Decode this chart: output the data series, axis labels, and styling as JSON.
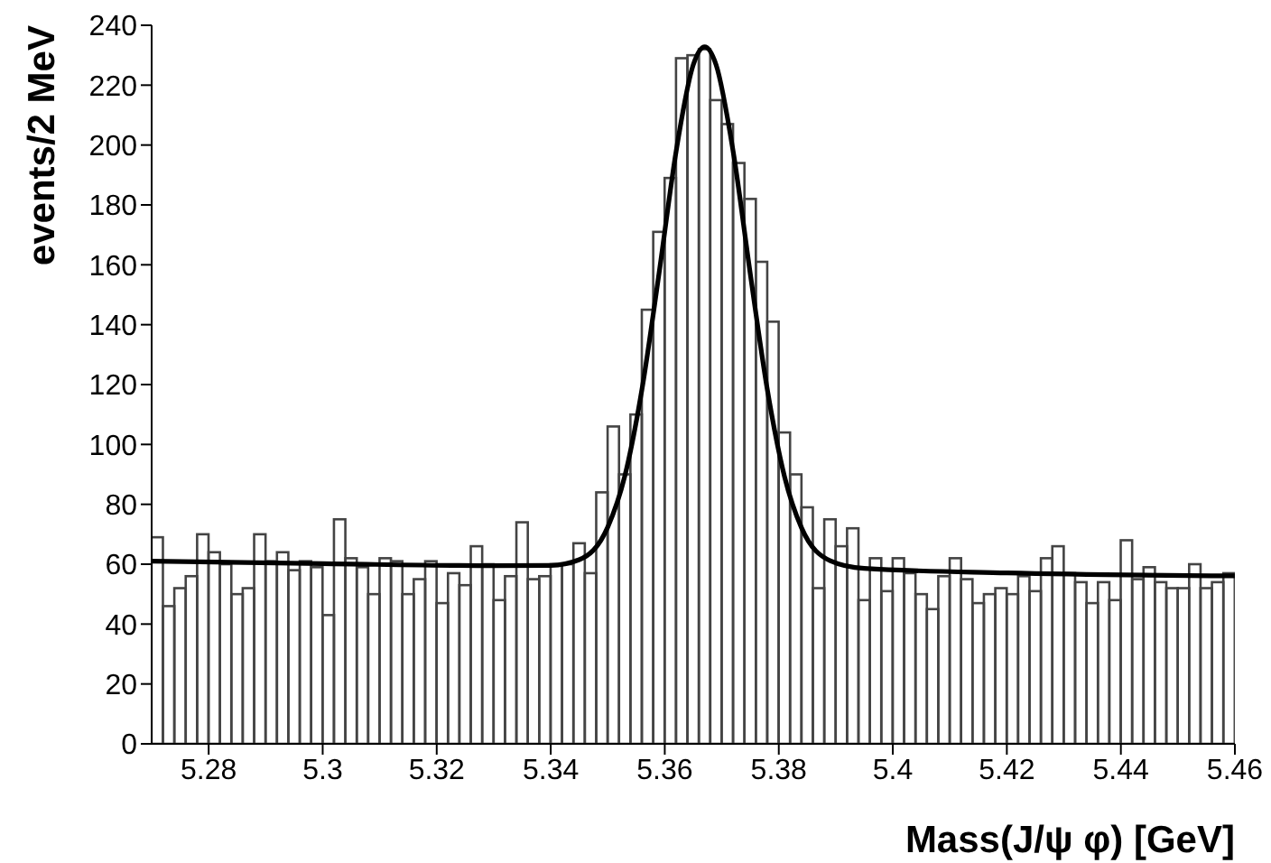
{
  "chart_data": {
    "type": "histogram",
    "xlabel": "Mass(J/ψ φ) [GeV]",
    "ylabel": "events/2 MeV",
    "xlim": [
      5.27,
      5.46
    ],
    "xticks": [
      5.28,
      5.3,
      5.32,
      5.34,
      5.36,
      5.38,
      5.4,
      5.42,
      5.44,
      5.46
    ],
    "ylim": [
      0,
      240
    ],
    "yticks": [
      0,
      20,
      40,
      60,
      80,
      100,
      120,
      140,
      160,
      180,
      200,
      220,
      240
    ],
    "grid": false,
    "legend": false,
    "series": [
      {
        "color": "#444444",
        "bins": [
          5.27,
          5.272,
          5.274,
          5.276,
          5.278,
          5.28,
          5.282,
          5.284,
          5.286,
          5.288,
          5.29,
          5.292,
          5.294,
          5.296,
          5.298,
          5.3,
          5.302,
          5.304,
          5.306,
          5.308,
          5.31,
          5.312,
          5.314,
          5.316,
          5.318,
          5.32,
          5.322,
          5.324,
          5.326,
          5.328,
          5.33,
          5.332,
          5.334,
          5.336,
          5.338,
          5.34,
          5.342,
          5.344,
          5.346,
          5.348,
          5.35,
          5.352,
          5.354,
          5.356,
          5.358,
          5.36,
          5.362,
          5.364,
          5.366,
          5.368,
          5.37,
          5.372,
          5.374,
          5.376,
          5.378,
          5.38,
          5.382,
          5.384,
          5.386,
          5.388,
          5.39,
          5.392,
          5.394,
          5.396,
          5.398,
          5.4,
          5.402,
          5.404,
          5.406,
          5.408,
          5.41,
          5.412,
          5.414,
          5.416,
          5.418,
          5.42,
          5.422,
          5.424,
          5.426,
          5.428,
          5.43,
          5.432,
          5.434,
          5.436,
          5.438,
          5.44,
          5.442,
          5.444,
          5.446,
          5.448,
          5.45,
          5.452,
          5.454,
          5.456,
          5.458,
          5.46
        ],
        "values": [
          69,
          46,
          52,
          56,
          70,
          64,
          60,
          50,
          52,
          70,
          61,
          64,
          58,
          61,
          59,
          43,
          75,
          62,
          59,
          50,
          62,
          61,
          50,
          55,
          61,
          47,
          57,
          53,
          66,
          60,
          48,
          56,
          74,
          55,
          56,
          60,
          60,
          67,
          57,
          84,
          106,
          90,
          110,
          145,
          171,
          189,
          229,
          230,
          232,
          215,
          207,
          194,
          182,
          161,
          141,
          104,
          90,
          79,
          52,
          75,
          66,
          72,
          48,
          62,
          51,
          62,
          57,
          50,
          45,
          56,
          62,
          55,
          47,
          50,
          52,
          50,
          56,
          51,
          62,
          66,
          57,
          54,
          47,
          54,
          48,
          68,
          55,
          59,
          54,
          52,
          52,
          60,
          52,
          54,
          57
        ]
      },
      {
        "type": "line",
        "color": "#000000",
        "x": [
          5.27,
          5.3,
          5.33,
          5.34,
          5.345,
          5.35,
          5.353,
          5.356,
          5.359,
          5.362,
          5.365,
          5.367,
          5.369,
          5.372,
          5.375,
          5.378,
          5.381,
          5.384,
          5.389,
          5.395,
          5.42,
          5.46
        ],
        "values": [
          61,
          60.2,
          59.5,
          59.6,
          61.5,
          72.4,
          89.5,
          118.4,
          157.2,
          198,
          226.8,
          232.8,
          226.8,
          197.8,
          157,
          118.2,
          89.3,
          72.1,
          61.2,
          58.6,
          57.1,
          56.1
        ]
      }
    ]
  }
}
